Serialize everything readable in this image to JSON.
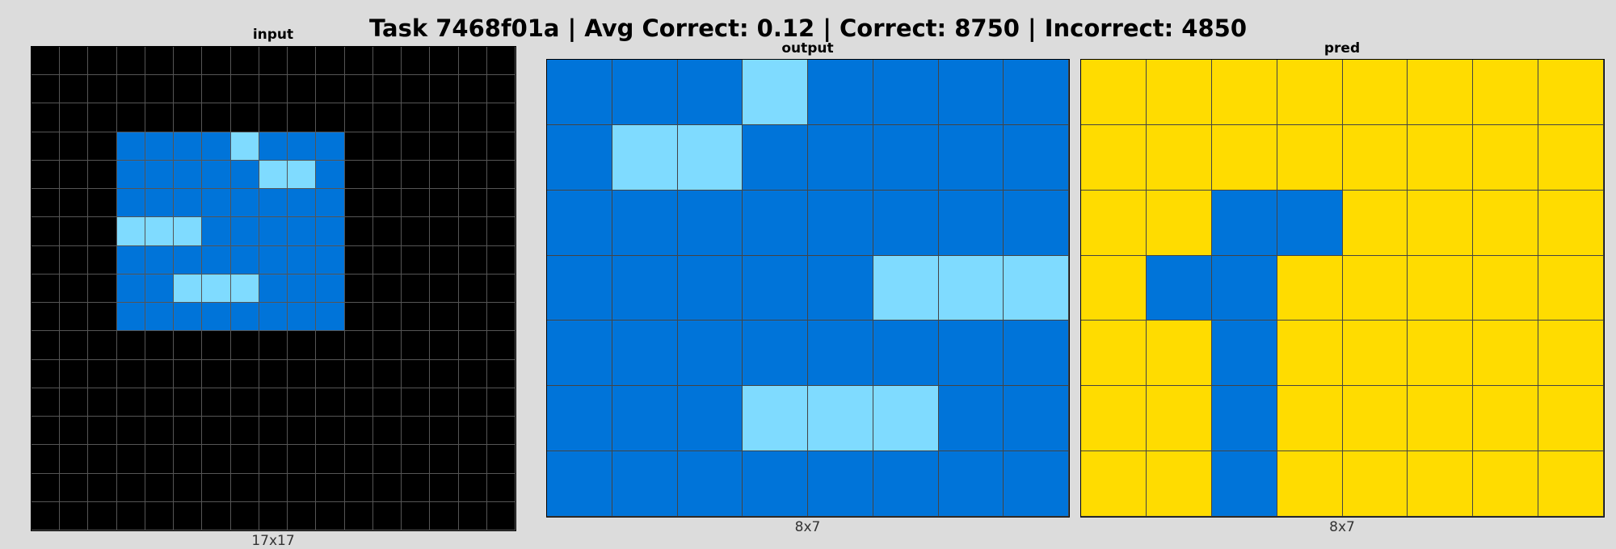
{
  "header": {
    "title": "Task 7468f01a | Avg Correct: 0.12 | Correct: 8750 | Incorrect: 4850"
  },
  "palette": {
    "0": "#000000",
    "1": "#0074D9",
    "4": "#FFDC00",
    "8": "#7FDBFF"
  },
  "panels": {
    "input": {
      "label": "input",
      "dims": "17x17",
      "rows": [
        "00000000000000000",
        "00000000000000000",
        "00000000000000000",
        "00011118111000000",
        "00011111881000000",
        "00011111111000000",
        "00088811111000000",
        "00011111111000000",
        "00011888111000000",
        "00011111111000000",
        "00000000000000000",
        "00000000000000000",
        "00000000000000000",
        "00000000000000000",
        "00000000000000000",
        "00000000000000000",
        "00000000000000000"
      ]
    },
    "output": {
      "label": "output",
      "dims": "8x7",
      "rows": [
        "11181111",
        "18811111",
        "11111111",
        "11111888",
        "11111111",
        "11188811",
        "11111111"
      ]
    },
    "pred": {
      "label": "pred",
      "dims": "8x7",
      "rows": [
        "44444444",
        "44444444",
        "44114444",
        "41144444",
        "44144444",
        "44144444",
        "44144444"
      ]
    }
  }
}
